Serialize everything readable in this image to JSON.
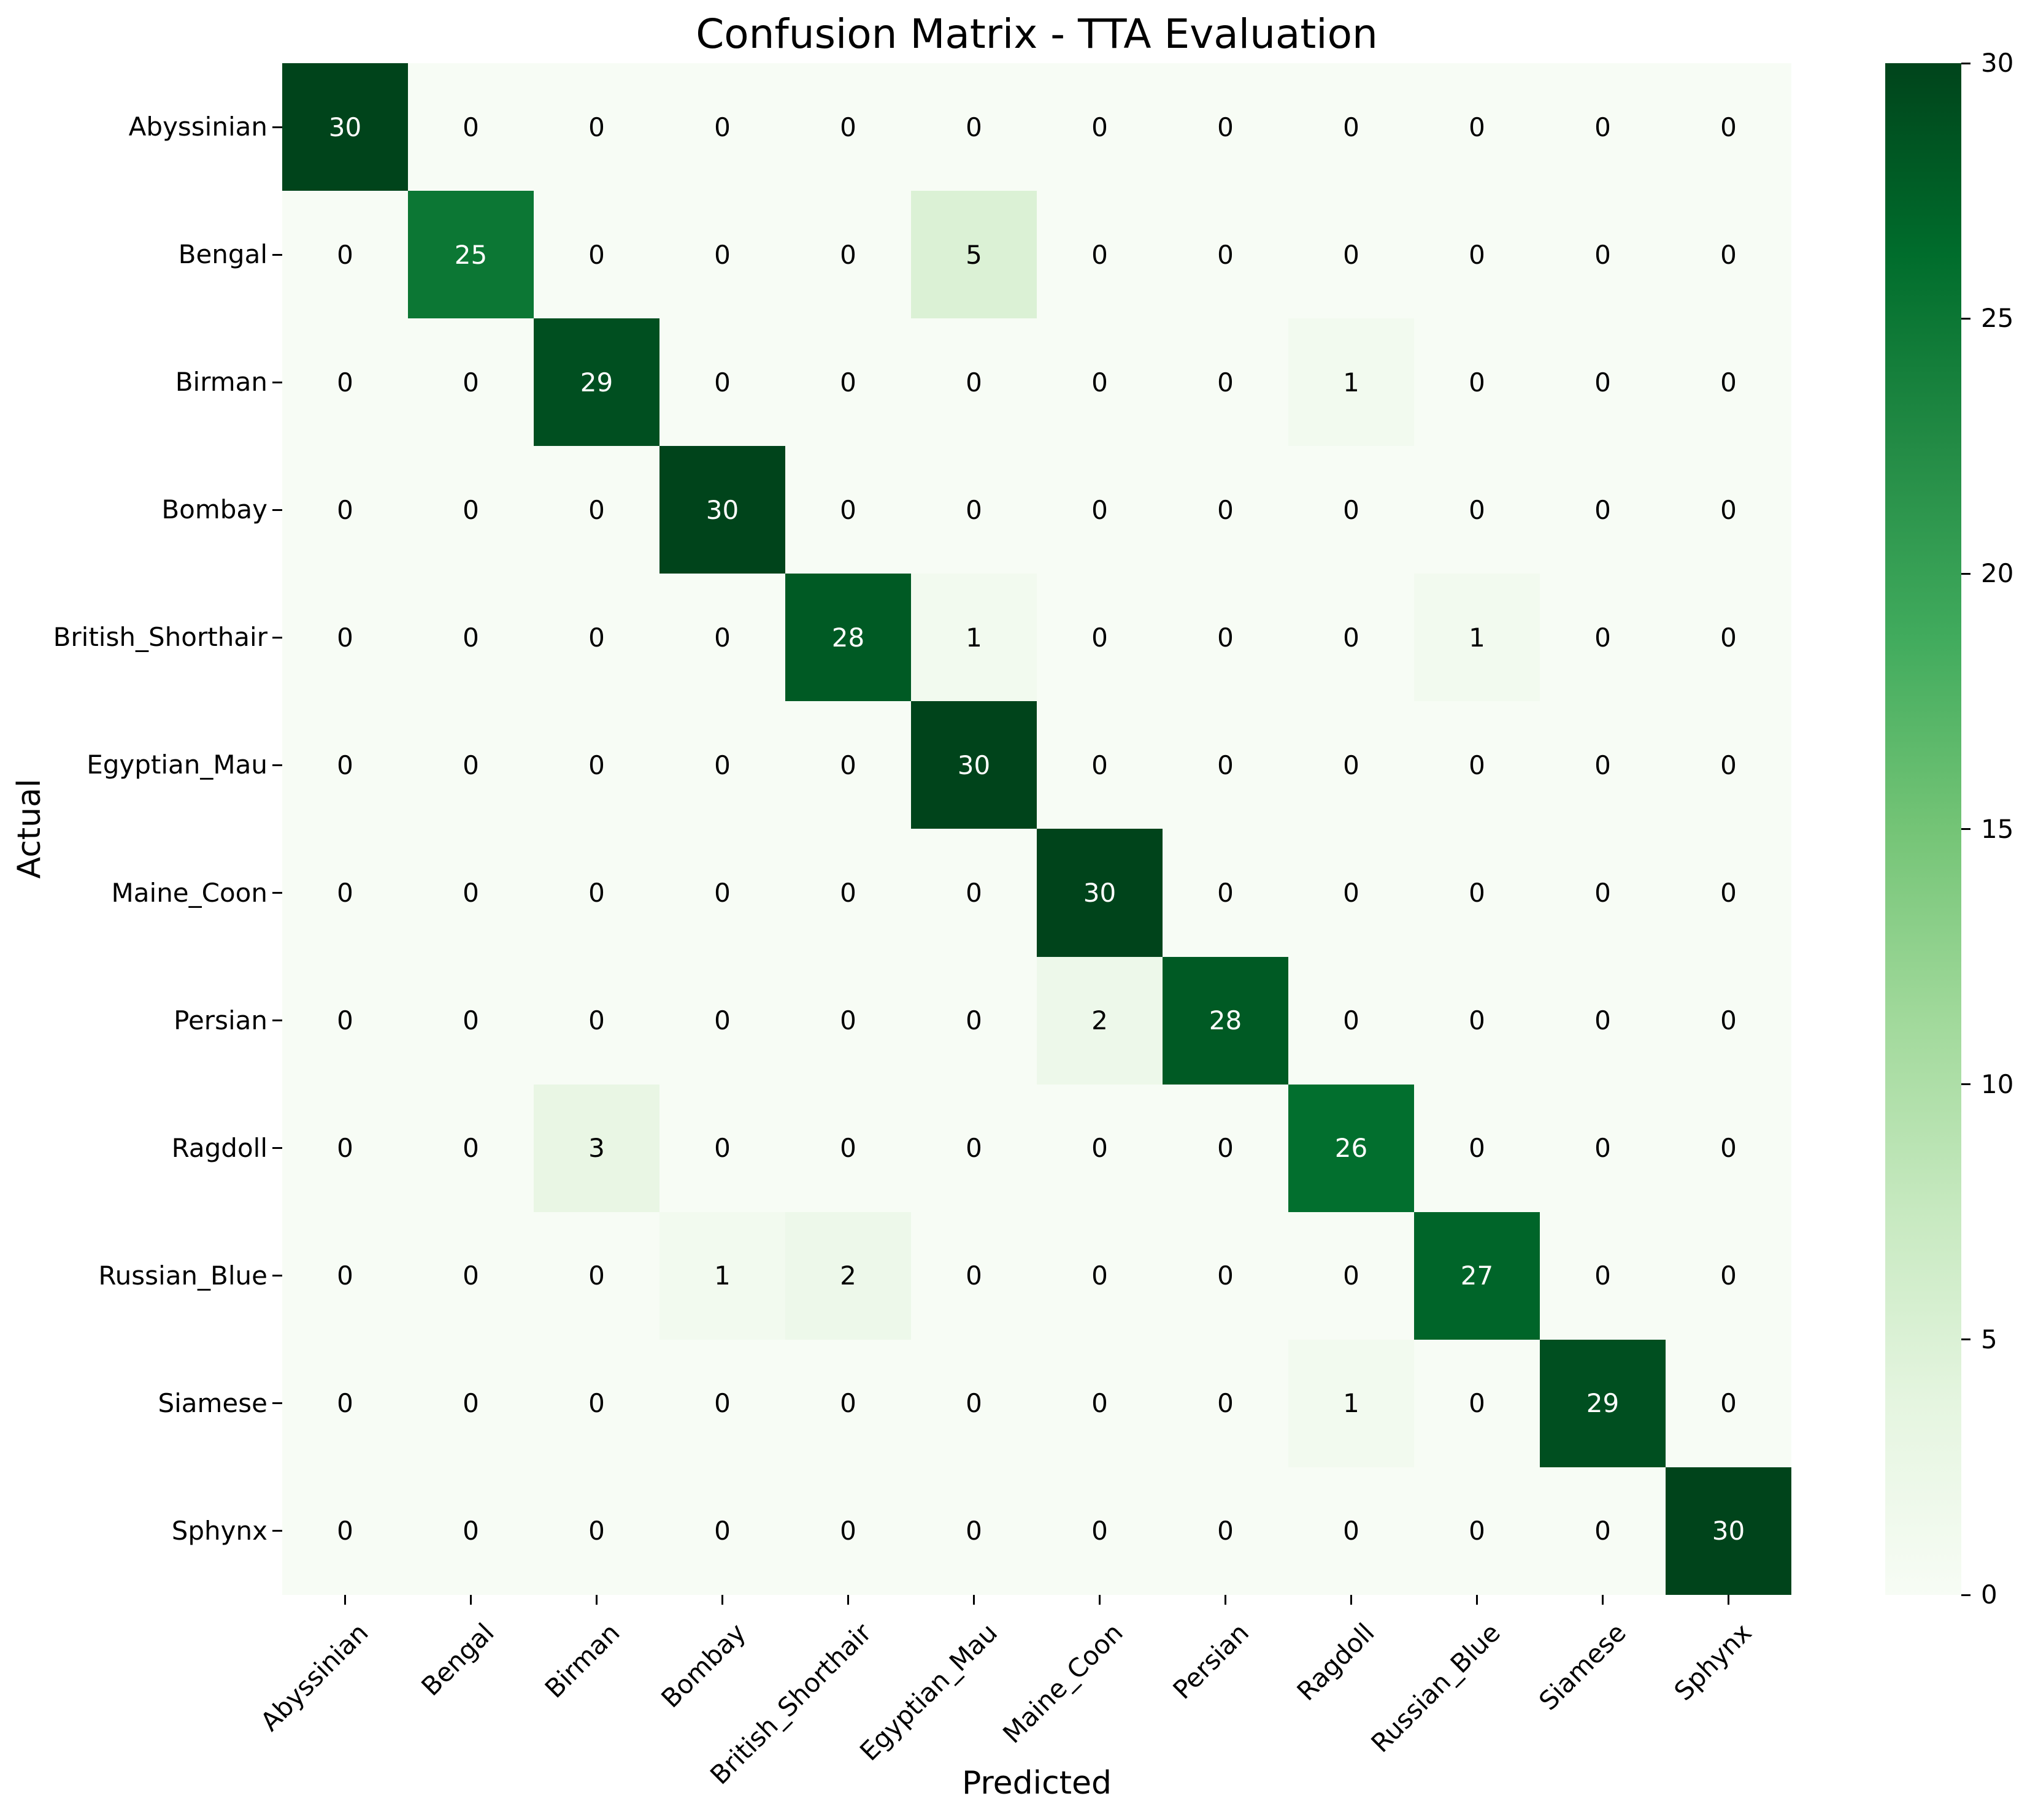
{
  "title": "Confusion Matrix - TTA Evaluation",
  "axes": {
    "xlabel": "Predicted",
    "ylabel": "Actual"
  },
  "chart_data": {
    "type": "heatmap",
    "title": "Confusion Matrix - TTA Evaluation",
    "xlabel": "Predicted",
    "ylabel": "Actual",
    "x_categories": [
      "Abyssinian",
      "Bengal",
      "Birman",
      "Bombay",
      "British_Shorthair",
      "Egyptian_Mau",
      "Maine_Coon",
      "Persian",
      "Ragdoll",
      "Russian_Blue",
      "Siamese",
      "Sphynx"
    ],
    "y_categories": [
      "Abyssinian",
      "Bengal",
      "Birman",
      "Bombay",
      "British_Shorthair",
      "Egyptian_Mau",
      "Maine_Coon",
      "Persian",
      "Ragdoll",
      "Russian_Blue",
      "Siamese",
      "Sphynx"
    ],
    "matrix": [
      [
        30,
        0,
        0,
        0,
        0,
        0,
        0,
        0,
        0,
        0,
        0,
        0
      ],
      [
        0,
        25,
        0,
        0,
        0,
        5,
        0,
        0,
        0,
        0,
        0,
        0
      ],
      [
        0,
        0,
        29,
        0,
        0,
        0,
        0,
        0,
        1,
        0,
        0,
        0
      ],
      [
        0,
        0,
        0,
        30,
        0,
        0,
        0,
        0,
        0,
        0,
        0,
        0
      ],
      [
        0,
        0,
        0,
        0,
        28,
        1,
        0,
        0,
        0,
        1,
        0,
        0
      ],
      [
        0,
        0,
        0,
        0,
        0,
        30,
        0,
        0,
        0,
        0,
        0,
        0
      ],
      [
        0,
        0,
        0,
        0,
        0,
        0,
        30,
        0,
        0,
        0,
        0,
        0
      ],
      [
        0,
        0,
        0,
        0,
        0,
        0,
        2,
        28,
        0,
        0,
        0,
        0
      ],
      [
        0,
        0,
        3,
        0,
        0,
        0,
        0,
        0,
        26,
        0,
        0,
        0
      ],
      [
        0,
        0,
        0,
        1,
        2,
        0,
        0,
        0,
        0,
        27,
        0,
        0
      ],
      [
        0,
        0,
        0,
        0,
        0,
        0,
        0,
        0,
        1,
        0,
        29,
        0
      ],
      [
        0,
        0,
        0,
        0,
        0,
        0,
        0,
        0,
        0,
        0,
        0,
        30
      ]
    ],
    "vmin": 0,
    "vmax": 30,
    "colormap": "Greens",
    "colorbar_ticks": [
      0,
      5,
      10,
      15,
      20,
      25,
      30
    ],
    "annotated": true,
    "grid": false,
    "legend_position": "right-colorbar"
  },
  "colors": {
    "background": "#ffffff",
    "tick_text": "#000000",
    "annot_dark_cells": "#ffffff",
    "annot_light_cells": "#000000",
    "greens_stops": [
      "#f7fcf5",
      "#e5f5e0",
      "#c7e9c0",
      "#a1d99b",
      "#74c476",
      "#41ab5d",
      "#238b45",
      "#006d2c",
      "#00441b"
    ]
  }
}
